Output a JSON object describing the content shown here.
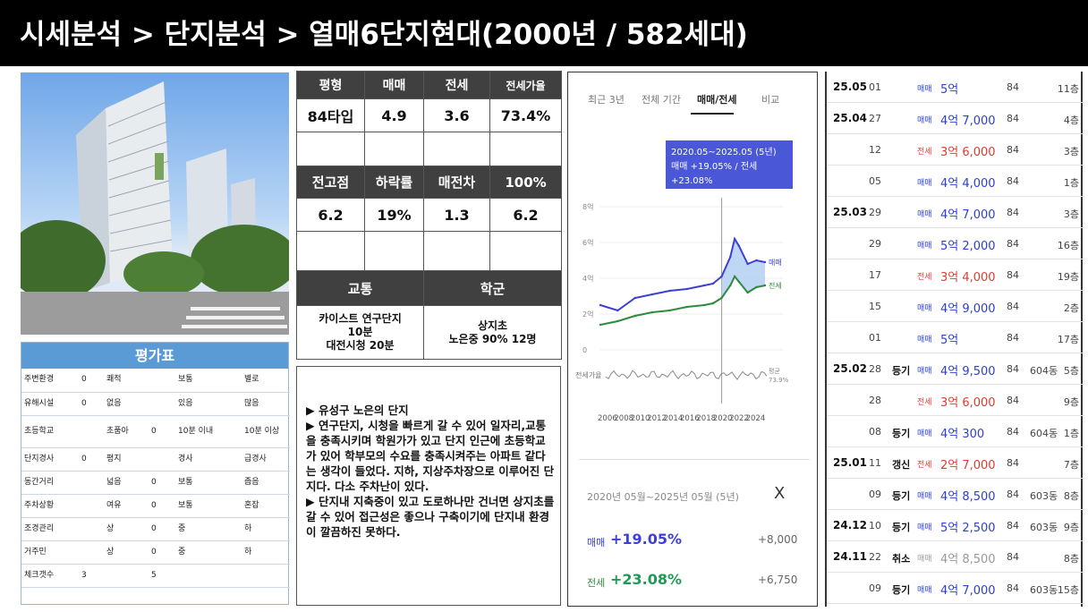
{
  "title": "시세분석 > 단지분석 > 열매6단지현대(2000년 / 582세대)",
  "price_table": {
    "headers1": [
      "평형",
      "매매",
      "전세",
      "전세가율"
    ],
    "row1": [
      "84타입",
      "4.9",
      "3.6",
      "73.4%"
    ],
    "headers2": [
      "전고점",
      "하락률",
      "매전차",
      "100%"
    ],
    "row2": [
      "6.2",
      "19%",
      "1.3",
      "6.2"
    ],
    "headers3": [
      "교통",
      "학군"
    ],
    "transport": "카이스트 연구단지\n10분\n대전시청 20분",
    "school": "상지초\n노은중 90% 12명"
  },
  "description": [
    "▶ 유성구 노은의 단지",
    "▶ 연구단지, 시청을 빠르게 갈 수 있어 일자리,교통을 충족시키며 학원가가 있고 단지 인근에 초등학교가 있어 학부모의 수요를 충족시켜주는 아파트 같다는 생각이 들었다. 지하, 지상주차장으로 이루어진 단지다. 다소 주차난이 있다.",
    "▶ 단지내 지축중이 있고 도로하나만 건너면 상지초를 갈 수 있어 접근성은 좋으나 구축이기에 단지내 환경이 깔끔하진 못하다."
  ],
  "eval": {
    "title": "평가표",
    "rows": [
      [
        "주변환경",
        "0",
        "쾌적",
        "",
        "보통",
        "",
        "별로"
      ],
      [
        "유해시설",
        "0",
        "없음",
        "",
        "있음",
        "",
        "많음"
      ],
      [
        "초등학교",
        "",
        "초품아",
        "0",
        "10분 이내",
        "",
        "10분 이상"
      ],
      [
        "단지경사",
        "0",
        "평지",
        "",
        "경사",
        "",
        "급경사"
      ],
      [
        "동간거리",
        "",
        "넓음",
        "0",
        "보통",
        "",
        "좁음"
      ],
      [
        "주차상황",
        "",
        "여유",
        "0",
        "보통",
        "",
        "혼잡"
      ],
      [
        "조경관리",
        "",
        "상",
        "0",
        "중",
        "",
        "하"
      ],
      [
        "거주민",
        "",
        "상",
        "0",
        "중",
        "",
        "하"
      ],
      [
        "체크갯수",
        "3",
        "",
        "5",
        "",
        "",
        ""
      ]
    ]
  },
  "chart": {
    "tabs": [
      "최근 3년",
      "전체 기간",
      "매매/전세",
      "비교"
    ],
    "tooltip_line1": "2020.05~2025.05 (5년)",
    "tooltip_line2": "매매 +19.05% / 전세 +23.08%",
    "y_labels": [
      "8억",
      "6억",
      "4억",
      "2억",
      "0"
    ],
    "ratio_label": "전세가율",
    "ratio_avg": "평균",
    "ratio_avg_value": "73.9%",
    "series_sale": "매매",
    "series_jeonse": "전세",
    "x_labels": [
      "2006",
      "2008",
      "2010",
      "2012",
      "2014",
      "2016",
      "2018",
      "2020",
      "2022",
      "2024"
    ],
    "period": "2020년 05월~2025년 05월 (5년)",
    "close": "X",
    "sale_label": "매매",
    "sale_pct": "+19.05%",
    "sale_val": "+8,000",
    "jeonse_label": "전세",
    "jeonse_pct": "+23.08%",
    "jeonse_val": "+6,750",
    "colors": {
      "sale": "#3d3fd6",
      "jeonse": "#2e8b3e",
      "ratio": "#888888",
      "tooltip": "#4a57d6"
    }
  },
  "chart_data": {
    "type": "line",
    "xlabel": "",
    "ylabel": "",
    "x_range": [
      2006,
      2025
    ],
    "ylim": [
      0,
      8
    ],
    "series": [
      {
        "name": "매매",
        "x": [
          2006,
          2008,
          2010,
          2012,
          2014,
          2016,
          2018,
          2019,
          2020,
          2021,
          2021.5,
          2022,
          2023,
          2024,
          2025
        ],
        "values": [
          2.5,
          2.2,
          2.9,
          3.1,
          3.3,
          3.4,
          3.6,
          3.7,
          4.1,
          5.2,
          6.2,
          5.8,
          4.8,
          5.0,
          4.9
        ]
      },
      {
        "name": "전세",
        "x": [
          2006,
          2008,
          2010,
          2012,
          2014,
          2016,
          2018,
          2019,
          2020,
          2021,
          2021.5,
          2022,
          2023,
          2024,
          2025
        ],
        "values": [
          1.4,
          1.6,
          1.9,
          2.1,
          2.2,
          2.4,
          2.5,
          2.6,
          2.9,
          3.6,
          4.1,
          3.8,
          3.2,
          3.5,
          3.6
        ]
      }
    ]
  },
  "transactions": [
    {
      "date": "25.05",
      "day": "01",
      "kind": "",
      "type": "매매",
      "price": "5억",
      "area": "84",
      "dong": "",
      "floor": "11층",
      "color": "blue"
    },
    {
      "date": "25.04",
      "day": "27",
      "kind": "",
      "type": "매매",
      "price": "4억 7,000",
      "area": "84",
      "dong": "",
      "floor": "4층",
      "color": "blue"
    },
    {
      "date": "",
      "day": "12",
      "kind": "",
      "type": "전세",
      "price": "3억 6,000",
      "area": "84",
      "dong": "",
      "floor": "3층",
      "color": "red"
    },
    {
      "date": "",
      "day": "05",
      "kind": "",
      "type": "매매",
      "price": "4억 4,000",
      "area": "84",
      "dong": "",
      "floor": "1층",
      "color": "blue"
    },
    {
      "date": "25.03",
      "day": "29",
      "kind": "",
      "type": "매매",
      "price": "4억 7,000",
      "area": "84",
      "dong": "",
      "floor": "3층",
      "color": "blue"
    },
    {
      "date": "",
      "day": "29",
      "kind": "",
      "type": "매매",
      "price": "5억 2,000",
      "area": "84",
      "dong": "",
      "floor": "16층",
      "color": "blue"
    },
    {
      "date": "",
      "day": "17",
      "kind": "",
      "type": "전세",
      "price": "3억 4,000",
      "area": "84",
      "dong": "",
      "floor": "19층",
      "color": "red"
    },
    {
      "date": "",
      "day": "15",
      "kind": "",
      "type": "매매",
      "price": "4억 9,000",
      "area": "84",
      "dong": "",
      "floor": "2층",
      "color": "blue"
    },
    {
      "date": "",
      "day": "01",
      "kind": "",
      "type": "매매",
      "price": "5억",
      "area": "84",
      "dong": "",
      "floor": "17층",
      "color": "blue"
    },
    {
      "date": "25.02",
      "day": "28",
      "kind": "등기",
      "type": "매매",
      "price": "4억 9,500",
      "area": "84",
      "dong": "604동",
      "floor": "5층",
      "color": "blue"
    },
    {
      "date": "",
      "day": "28",
      "kind": "",
      "type": "전세",
      "price": "3억 6,000",
      "area": "84",
      "dong": "",
      "floor": "9층",
      "color": "red"
    },
    {
      "date": "",
      "day": "08",
      "kind": "등기",
      "type": "매매",
      "price": "4억 300",
      "area": "84",
      "dong": "604동",
      "floor": "1층",
      "color": "blue"
    },
    {
      "date": "25.01",
      "day": "11",
      "kind": "갱신",
      "type": "전세",
      "price": "2억 7,000",
      "area": "84",
      "dong": "",
      "floor": "7층",
      "color": "red"
    },
    {
      "date": "",
      "day": "09",
      "kind": "등기",
      "type": "매매",
      "price": "4억 8,500",
      "area": "84",
      "dong": "603동",
      "floor": "8층",
      "color": "blue"
    },
    {
      "date": "24.12",
      "day": "10",
      "kind": "등기",
      "type": "매매",
      "price": "5억 2,500",
      "area": "84",
      "dong": "603동",
      "floor": "9층",
      "color": "blue"
    },
    {
      "date": "24.11",
      "day": "22",
      "kind": "취소",
      "type": "매매",
      "price": "4억 8,500",
      "area": "84",
      "dong": "",
      "floor": "8층",
      "color": "gray"
    },
    {
      "date": "",
      "day": "09",
      "kind": "등기",
      "type": "매매",
      "price": "4억 7,000",
      "area": "84",
      "dong": "603동",
      "floor": "15층",
      "color": "blue"
    }
  ]
}
